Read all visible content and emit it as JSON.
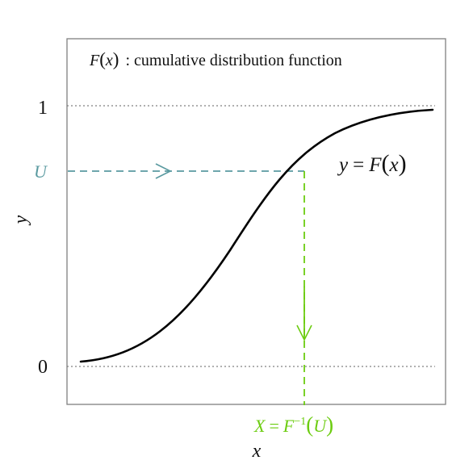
{
  "title_func": "F",
  "title_arg": "x",
  "title_rest": ": cumulative distribution function",
  "tick_one": "1",
  "tick_u": "U",
  "tick_zero": "0",
  "y_axis_label": "y",
  "x_axis_label": "x",
  "curve_label_lhs": "y",
  "curve_label_eq": "=",
  "curve_label_func": "F",
  "curve_label_arg": "x",
  "inverse_lhs": "X",
  "inverse_eq": "=",
  "inverse_func": "F",
  "inverse_sup": "−1",
  "inverse_arg": "U",
  "colors": {
    "curve": "#000000",
    "u_line": "#5a9aa0",
    "inverse_line": "#6ccc10",
    "reference": "#808080",
    "frame": "#808080"
  }
}
